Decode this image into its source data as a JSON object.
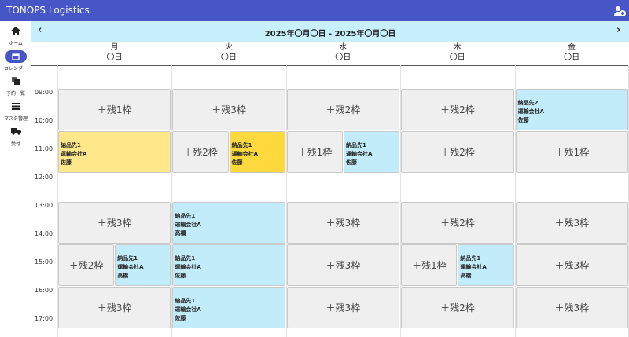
{
  "header": {
    "title": "TONOPS Logistics"
  },
  "sidebar": {
    "items": [
      "ホーム",
      "カレンダー",
      "予約一覧",
      "マスタ管理",
      "受付"
    ]
  },
  "nav": {
    "range": "2025年〇月〇日 - 2025年〇月〇日"
  },
  "days": [
    {
      "weekday": "月",
      "date": "〇日"
    },
    {
      "weekday": "火",
      "date": "〇日"
    },
    {
      "weekday": "水",
      "date": "〇日"
    },
    {
      "weekday": "木",
      "date": "〇日"
    },
    {
      "weekday": "金",
      "date": "〇日"
    }
  ],
  "times": [
    "09:00",
    "10:00",
    "11:00",
    "12:00",
    "13:00",
    "14:00",
    "15:00",
    "16:00",
    "17:00"
  ],
  "rows": [
    [
      [
        {
          "label": "＋残1枠"
        }
      ],
      [
        {
          "label": "＋残3枠"
        }
      ],
      [
        {
          "label": "＋残2枠"
        }
      ],
      [
        {
          "label": "＋残2枠"
        }
      ],
      [
        {
          "lines": [
            "納品先2",
            "運輸会社A",
            "佐藤"
          ],
          "color": "#c3ecfb"
        }
      ]
    ],
    [
      [
        {
          "lines": [
            "納品先1",
            "運輸会社A",
            "佐藤"
          ],
          "color": "#fee88a"
        }
      ],
      [
        {
          "label": "＋残2枠"
        },
        {
          "lines": [
            "納品先1",
            "運輸会社A",
            "佐藤"
          ],
          "color": "#fdd93e"
        }
      ],
      [
        {
          "label": "＋残1枠"
        },
        {
          "lines": [
            "納品先1",
            "運輸会社A",
            "佐藤"
          ],
          "color": "#c3ecfb"
        }
      ],
      [
        {
          "label": "＋残2枠"
        }
      ],
      [
        {
          "label": "＋残1枠"
        }
      ]
    ],
    [
      [
        {
          "label": "＋残3枠"
        }
      ],
      [
        {
          "lines": [
            "納品先1",
            "運輸会社A",
            "高橋"
          ],
          "color": "#c3ecfb"
        }
      ],
      [
        {
          "label": "＋残3枠"
        }
      ],
      [
        {
          "label": "＋残2枠"
        }
      ],
      [
        {
          "label": "＋残3枠"
        }
      ]
    ],
    [
      [
        {
          "label": "＋残2枠"
        },
        {
          "lines": [
            "納品先1",
            "運輸会社A",
            "高橋"
          ],
          "color": "#c3ecfb"
        }
      ],
      [
        {
          "lines": [
            "納品先1",
            "運輸会社A",
            "佐藤"
          ],
          "color": "#c3ecfb"
        }
      ],
      [
        {
          "label": "＋残3枠"
        }
      ],
      [
        {
          "label": "＋残1枠"
        },
        {
          "lines": [
            "納品先1",
            "運輸会社A",
            "高橋"
          ],
          "color": "#c3ecfb"
        }
      ],
      [
        {
          "label": "＋残3枠"
        }
      ]
    ],
    [
      [
        {
          "label": "＋残3枠"
        }
      ],
      [
        {
          "lines": [
            "納品先1",
            "運輸会社A",
            "佐藤"
          ],
          "color": "#c3ecfb"
        }
      ],
      [
        {
          "label": "＋残3枠"
        }
      ],
      [
        {
          "label": "＋残2枠"
        }
      ],
      [
        {
          "label": "＋残3枠"
        }
      ]
    ]
  ]
}
